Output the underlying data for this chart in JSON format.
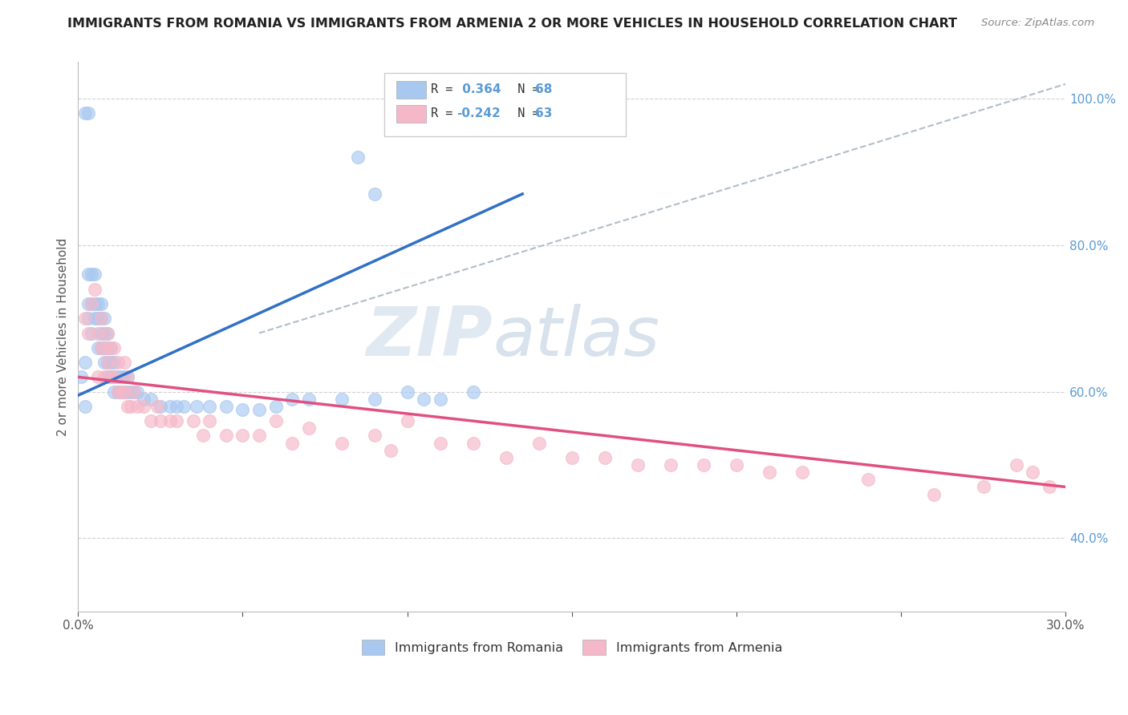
{
  "title": "IMMIGRANTS FROM ROMANIA VS IMMIGRANTS FROM ARMENIA 2 OR MORE VEHICLES IN HOUSEHOLD CORRELATION CHART",
  "source": "Source: ZipAtlas.com",
  "ylabel": "2 or more Vehicles in Household",
  "xlim": [
    0.0,
    0.3
  ],
  "ylim": [
    0.3,
    1.05
  ],
  "xticks": [
    0.0,
    0.05,
    0.1,
    0.15,
    0.2,
    0.25,
    0.3
  ],
  "xtick_labels": [
    "0.0%",
    "",
    "",
    "",
    "",
    "",
    "30.0%"
  ],
  "ytick_positions": [
    0.4,
    0.6,
    0.8,
    1.0
  ],
  "ytick_labels": [
    "40.0%",
    "60.0%",
    "80.0%",
    "100.0%"
  ],
  "romania_color": "#a8c8f0",
  "armenia_color": "#f5b8c8",
  "romania_R": 0.364,
  "romania_N": 68,
  "armenia_R": -0.242,
  "armenia_N": 63,
  "romania_line_color": "#3070c8",
  "armenia_line_color": "#e05080",
  "ref_line_color": "#b0bec8",
  "watermark_zip": "ZIP",
  "watermark_atlas": "atlas",
  "legend_label_romania": "Immigrants from Romania",
  "legend_label_armenia": "Immigrants from Armenia",
  "romania_x": [
    0.001,
    0.002,
    0.002,
    0.003,
    0.003,
    0.003,
    0.004,
    0.004,
    0.004,
    0.005,
    0.005,
    0.005,
    0.006,
    0.006,
    0.006,
    0.007,
    0.007,
    0.007,
    0.007,
    0.008,
    0.008,
    0.008,
    0.008,
    0.009,
    0.009,
    0.009,
    0.009,
    0.01,
    0.01,
    0.01,
    0.011,
    0.011,
    0.011,
    0.012,
    0.012,
    0.013,
    0.013,
    0.014,
    0.014,
    0.015,
    0.015,
    0.016,
    0.017,
    0.018,
    0.02,
    0.022,
    0.025,
    0.028,
    0.03,
    0.032,
    0.036,
    0.04,
    0.045,
    0.05,
    0.055,
    0.06,
    0.065,
    0.07,
    0.08,
    0.09,
    0.1,
    0.105,
    0.11,
    0.12,
    0.09,
    0.085,
    0.002,
    0.003
  ],
  "romania_y": [
    0.62,
    0.58,
    0.64,
    0.7,
    0.72,
    0.76,
    0.68,
    0.72,
    0.76,
    0.7,
    0.72,
    0.76,
    0.66,
    0.7,
    0.72,
    0.66,
    0.68,
    0.7,
    0.72,
    0.64,
    0.66,
    0.68,
    0.7,
    0.62,
    0.64,
    0.66,
    0.68,
    0.62,
    0.64,
    0.66,
    0.6,
    0.62,
    0.64,
    0.6,
    0.62,
    0.6,
    0.62,
    0.6,
    0.62,
    0.6,
    0.62,
    0.6,
    0.6,
    0.6,
    0.59,
    0.59,
    0.58,
    0.58,
    0.58,
    0.58,
    0.58,
    0.58,
    0.58,
    0.575,
    0.575,
    0.58,
    0.59,
    0.59,
    0.59,
    0.59,
    0.6,
    0.59,
    0.59,
    0.6,
    0.87,
    0.92,
    0.98,
    0.98
  ],
  "armenia_x": [
    0.002,
    0.003,
    0.004,
    0.005,
    0.006,
    0.006,
    0.007,
    0.007,
    0.008,
    0.008,
    0.009,
    0.009,
    0.01,
    0.01,
    0.011,
    0.011,
    0.012,
    0.012,
    0.013,
    0.014,
    0.014,
    0.015,
    0.015,
    0.016,
    0.017,
    0.018,
    0.02,
    0.022,
    0.024,
    0.025,
    0.028,
    0.03,
    0.035,
    0.038,
    0.04,
    0.045,
    0.05,
    0.055,
    0.06,
    0.065,
    0.07,
    0.08,
    0.09,
    0.095,
    0.1,
    0.11,
    0.12,
    0.13,
    0.14,
    0.15,
    0.16,
    0.17,
    0.18,
    0.19,
    0.2,
    0.21,
    0.22,
    0.24,
    0.26,
    0.275,
    0.285,
    0.29,
    0.295
  ],
  "armenia_y": [
    0.7,
    0.68,
    0.72,
    0.74,
    0.62,
    0.68,
    0.66,
    0.7,
    0.62,
    0.66,
    0.64,
    0.68,
    0.62,
    0.66,
    0.62,
    0.66,
    0.6,
    0.64,
    0.6,
    0.6,
    0.64,
    0.58,
    0.62,
    0.58,
    0.6,
    0.58,
    0.58,
    0.56,
    0.58,
    0.56,
    0.56,
    0.56,
    0.56,
    0.54,
    0.56,
    0.54,
    0.54,
    0.54,
    0.56,
    0.53,
    0.55,
    0.53,
    0.54,
    0.52,
    0.56,
    0.53,
    0.53,
    0.51,
    0.53,
    0.51,
    0.51,
    0.5,
    0.5,
    0.5,
    0.5,
    0.49,
    0.49,
    0.48,
    0.46,
    0.47,
    0.5,
    0.49,
    0.47
  ],
  "romania_line_x": [
    0.0,
    0.135
  ],
  "romania_line_y": [
    0.595,
    0.87
  ],
  "armenia_line_x": [
    0.0,
    0.3
  ],
  "armenia_line_y": [
    0.62,
    0.47
  ],
  "ref_line_x": [
    0.055,
    0.3
  ],
  "ref_line_y": [
    0.68,
    1.02
  ]
}
